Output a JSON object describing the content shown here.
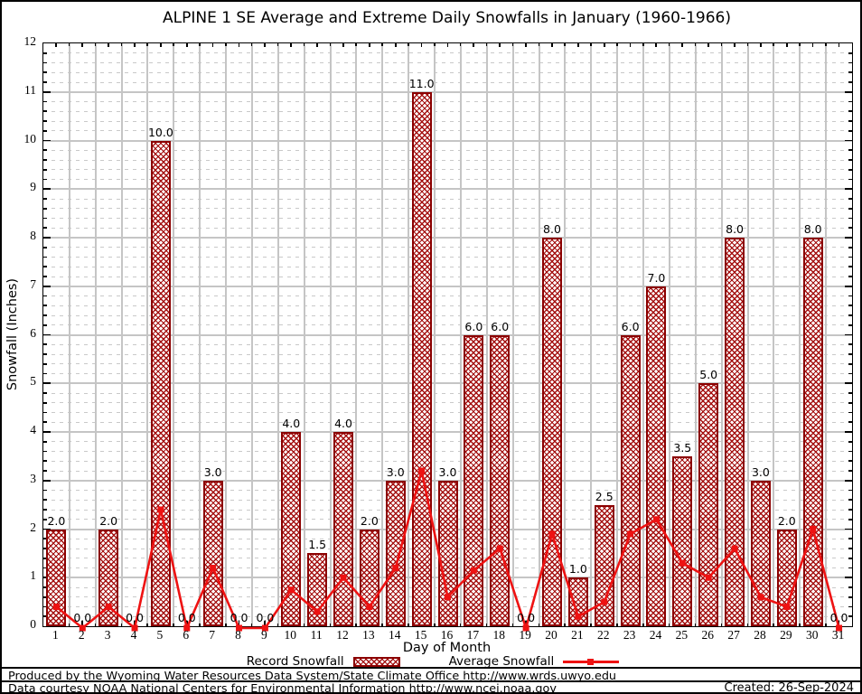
{
  "title": "ALPINE 1 SE Average and Extreme Daily Snowfalls in January (1960-1966)",
  "chart_data": {
    "type": "bar",
    "categories": [
      1,
      2,
      3,
      4,
      5,
      6,
      7,
      8,
      9,
      10,
      11,
      12,
      13,
      14,
      15,
      16,
      17,
      18,
      19,
      20,
      21,
      22,
      23,
      24,
      25,
      26,
      27,
      28,
      29,
      30,
      31
    ],
    "series": [
      {
        "name": "Record Snowfall",
        "type": "bar",
        "values": [
          2.0,
          0.0,
          2.0,
          0.0,
          10.0,
          0.0,
          3.0,
          0.0,
          0.0,
          4.0,
          1.5,
          4.0,
          2.0,
          3.0,
          11.0,
          3.0,
          6.0,
          6.0,
          0.0,
          8.0,
          1.0,
          2.5,
          6.0,
          7.0,
          3.5,
          5.0,
          8.0,
          3.0,
          2.0,
          8.0,
          0.0
        ]
      },
      {
        "name": "Average Snowfall",
        "type": "line",
        "values": [
          0.4,
          0.0,
          0.4,
          0.0,
          2.4,
          0.0,
          1.2,
          0.0,
          0.0,
          0.75,
          0.3,
          1.0,
          0.4,
          1.2,
          3.2,
          0.6,
          1.15,
          1.6,
          0.0,
          1.9,
          0.2,
          0.5,
          1.9,
          2.2,
          1.3,
          1.0,
          1.6,
          0.6,
          0.4,
          2.0,
          0.0
        ]
      }
    ],
    "title": "ALPINE 1 SE Average and Extreme Daily Snowfalls in January (1960-1966)",
    "xlabel": "Day of Month",
    "ylabel": "Snowfall (Inches)",
    "ylim": [
      0,
      12
    ],
    "y_major_step": 1,
    "y_minor_step": 0.2,
    "grid": "major horizontal and vertical solid gray, minor horizontal dashed",
    "legend_position": "bottom",
    "bar_value_labels_shown": true,
    "colors": {
      "bar_edge": "#8b0000",
      "bar_hatch": "#a40f0f",
      "line": "#ee1212",
      "grid_major": "#c5c5c5",
      "grid_minor": "#c9c9c9"
    }
  },
  "legend": {
    "record_label": "Record Snowfall",
    "average_label": "Average Snowfall"
  },
  "footer": {
    "line1": "Produced by the Wyoming Water Resources Data System/State Climate Office http://www.wrds.uwyo.edu",
    "line2": "Data courtesy NOAA National Centers for Environmental Information http://www.ncei.noaa.gov",
    "created": "Created: 26-Sep-2024"
  }
}
